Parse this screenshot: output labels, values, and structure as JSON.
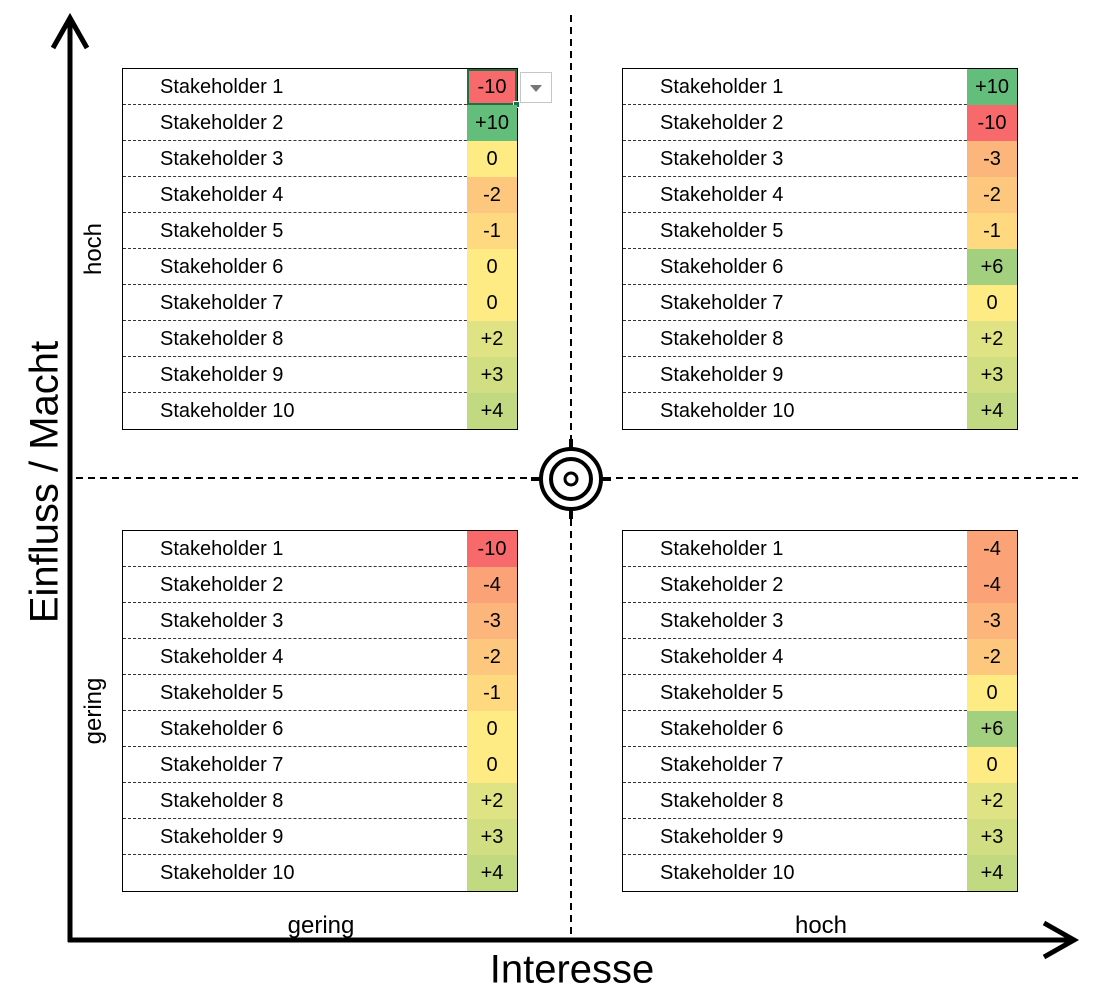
{
  "axes": {
    "y_title": "Einfluss / Macht",
    "x_title": "Interesse",
    "y_high": "hoch",
    "y_low": "gering",
    "x_low": "gering",
    "x_high": "hoch"
  },
  "quadrants": {
    "top_left": {
      "rows": [
        {
          "name": "Stakeholder 1",
          "value": "-10",
          "color": "#f8696b"
        },
        {
          "name": "Stakeholder 2",
          "value": "+10",
          "color": "#63be7b"
        },
        {
          "name": "Stakeholder 3",
          "value": "0",
          "color": "#ffeb84"
        },
        {
          "name": "Stakeholder 4",
          "value": "-2",
          "color": "#fdc77d"
        },
        {
          "name": "Stakeholder 5",
          "value": "-1",
          "color": "#fed980"
        },
        {
          "name": "Stakeholder 6",
          "value": "0",
          "color": "#ffeb84"
        },
        {
          "name": "Stakeholder 7",
          "value": "0",
          "color": "#ffeb84"
        },
        {
          "name": "Stakeholder 8",
          "value": "+2",
          "color": "#e0e383"
        },
        {
          "name": "Stakeholder 9",
          "value": "+3",
          "color": "#d1df82"
        },
        {
          "name": "Stakeholder 10",
          "value": "+4",
          "color": "#c1da81"
        }
      ]
    },
    "top_right": {
      "rows": [
        {
          "name": "Stakeholder 1",
          "value": "+10",
          "color": "#63be7b"
        },
        {
          "name": "Stakeholder 2",
          "value": "-10",
          "color": "#f8696b"
        },
        {
          "name": "Stakeholder 3",
          "value": "-3",
          "color": "#fcb57a"
        },
        {
          "name": "Stakeholder 4",
          "value": "-2",
          "color": "#fdc77d"
        },
        {
          "name": "Stakeholder 5",
          "value": "-1",
          "color": "#fed980"
        },
        {
          "name": "Stakeholder 6",
          "value": "+6",
          "color": "#a2d07f"
        },
        {
          "name": "Stakeholder 7",
          "value": "0",
          "color": "#ffeb84"
        },
        {
          "name": "Stakeholder 8",
          "value": "+2",
          "color": "#e0e383"
        },
        {
          "name": "Stakeholder 9",
          "value": "+3",
          "color": "#d1df82"
        },
        {
          "name": "Stakeholder 10",
          "value": "+4",
          "color": "#c1da81"
        }
      ]
    },
    "bottom_left": {
      "rows": [
        {
          "name": "Stakeholder 1",
          "value": "-10",
          "color": "#f8696b"
        },
        {
          "name": "Stakeholder 2",
          "value": "-4",
          "color": "#fba276"
        },
        {
          "name": "Stakeholder 3",
          "value": "-3",
          "color": "#fcb57a"
        },
        {
          "name": "Stakeholder 4",
          "value": "-2",
          "color": "#fdc77d"
        },
        {
          "name": "Stakeholder 5",
          "value": "-1",
          "color": "#fed980"
        },
        {
          "name": "Stakeholder 6",
          "value": "0",
          "color": "#ffeb84"
        },
        {
          "name": "Stakeholder 7",
          "value": "0",
          "color": "#ffeb84"
        },
        {
          "name": "Stakeholder 8",
          "value": "+2",
          "color": "#e0e383"
        },
        {
          "name": "Stakeholder 9",
          "value": "+3",
          "color": "#d1df82"
        },
        {
          "name": "Stakeholder 10",
          "value": "+4",
          "color": "#c1da81"
        }
      ]
    },
    "bottom_right": {
      "rows": [
        {
          "name": "Stakeholder 1",
          "value": "-4",
          "color": "#fba276"
        },
        {
          "name": "Stakeholder 2",
          "value": "-4",
          "color": "#fba276"
        },
        {
          "name": "Stakeholder 3",
          "value": "-3",
          "color": "#fcb57a"
        },
        {
          "name": "Stakeholder 4",
          "value": "-2",
          "color": "#fdc77d"
        },
        {
          "name": "Stakeholder 5",
          "value": "0",
          "color": "#ffeb84"
        },
        {
          "name": "Stakeholder 6",
          "value": "+6",
          "color": "#a2d07f"
        },
        {
          "name": "Stakeholder 7",
          "value": "0",
          "color": "#ffeb84"
        },
        {
          "name": "Stakeholder 8",
          "value": "+2",
          "color": "#e0e383"
        },
        {
          "name": "Stakeholder 9",
          "value": "+3",
          "color": "#d1df82"
        },
        {
          "name": "Stakeholder 10",
          "value": "+4",
          "color": "#c1da81"
        }
      ]
    }
  },
  "selection": {
    "quadrant": "top_left",
    "row": 0,
    "dropdown_icon": "chevron-down-icon"
  },
  "center_icon": "target-icon"
}
